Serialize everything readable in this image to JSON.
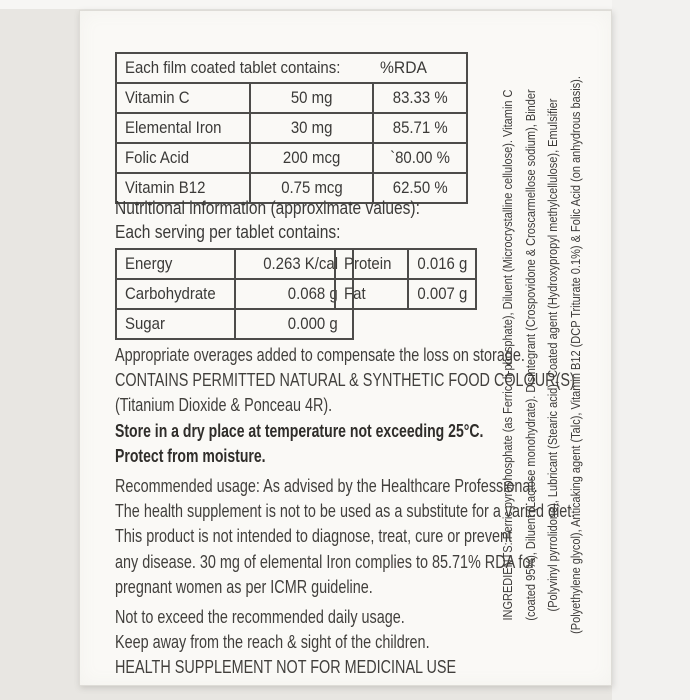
{
  "colors": {
    "text": "#3b3a38",
    "table_border": "#4d4c4a",
    "package_bg": "#faf9f6",
    "photo_bg": "#e8e6e2"
  },
  "tablet_table": {
    "title": "Each film coated tablet contains:",
    "rda_header": "%RDA",
    "rows": [
      {
        "name": "Vitamin C",
        "amount": "50 mg",
        "rda": "83.33 %"
      },
      {
        "name": "Elemental Iron",
        "amount": "30 mg",
        "rda": "85.71 %"
      },
      {
        "name": "Folic Acid",
        "amount": "200 mcg",
        "rda": "`80.00 %"
      },
      {
        "name": "Vitamin B12",
        "amount": "0.75 mcg",
        "rda": "62.50 %"
      }
    ]
  },
  "nutrition": {
    "heading_line1": "Nutritional information (approximate values):",
    "heading_line2": "Each serving per tablet contains:",
    "left_table": [
      {
        "name": "Energy",
        "value": "0.263 K/cal"
      },
      {
        "name": "Carbohydrate",
        "value": "0.068 g"
      },
      {
        "name": "Sugar",
        "value": "0.000 g"
      }
    ],
    "right_table": [
      {
        "name": "Protein",
        "value": "0.016 g"
      },
      {
        "name": "Fat",
        "value": "0.007 g"
      }
    ]
  },
  "notes": [
    {
      "text": "Appropriate overages added to compensate the loss on storage."
    },
    {
      "text": "CONTAINS PERMITTED NATURAL & SYNTHETIC FOOD COLOUR(S)"
    },
    {
      "text": "(Titanium Dioxide & Ponceau 4R)."
    },
    {
      "text": "Store in a dry place at temperature not exceeding 25°C."
    },
    {
      "text": "Protect from moisture."
    },
    {
      "text": "Recommended usage: As advised by the Healthcare Professional."
    },
    {
      "text": "The health supplement is not to be used as a substitute for a varied diet."
    },
    {
      "text": "This product is not intended to diagnose, treat, cure or prevent"
    },
    {
      "text": "any disease. 30 mg of elemental Iron complies to 85.71% RDA for"
    },
    {
      "text": "pregnant women as per ICMR guideline."
    },
    {
      "text": "Not to exceed the recommended daily usage."
    },
    {
      "text": "Keep away from the reach & sight of the children."
    },
    {
      "text": "HEALTH SUPPLEMENT NOT FOR MEDICINAL USE"
    }
  ],
  "ingredients": {
    "lines": [
      "INGREDIENTS: Ferric pyrophosphate (as Ferric di-phosphate), Diluent (Microcrystalline cellulose). Vitamin C",
      "(coated 95%), Diluent (Lactose monohydrate). Disintegrant (Crospovidone & Croscarmellose sodium), Binder",
      "(Polyvinyl pyrrolidone), Lubricant (Stearic acid), Coated agent (Hydroxypropyl methylcellulose), Emulsifier",
      "(Polyethylene glycol), Anticaking agent (Talc), Vitamin B12 (DCP Triturate 0.1%) & Folic Acid (on anhydrous basis)."
    ]
  }
}
